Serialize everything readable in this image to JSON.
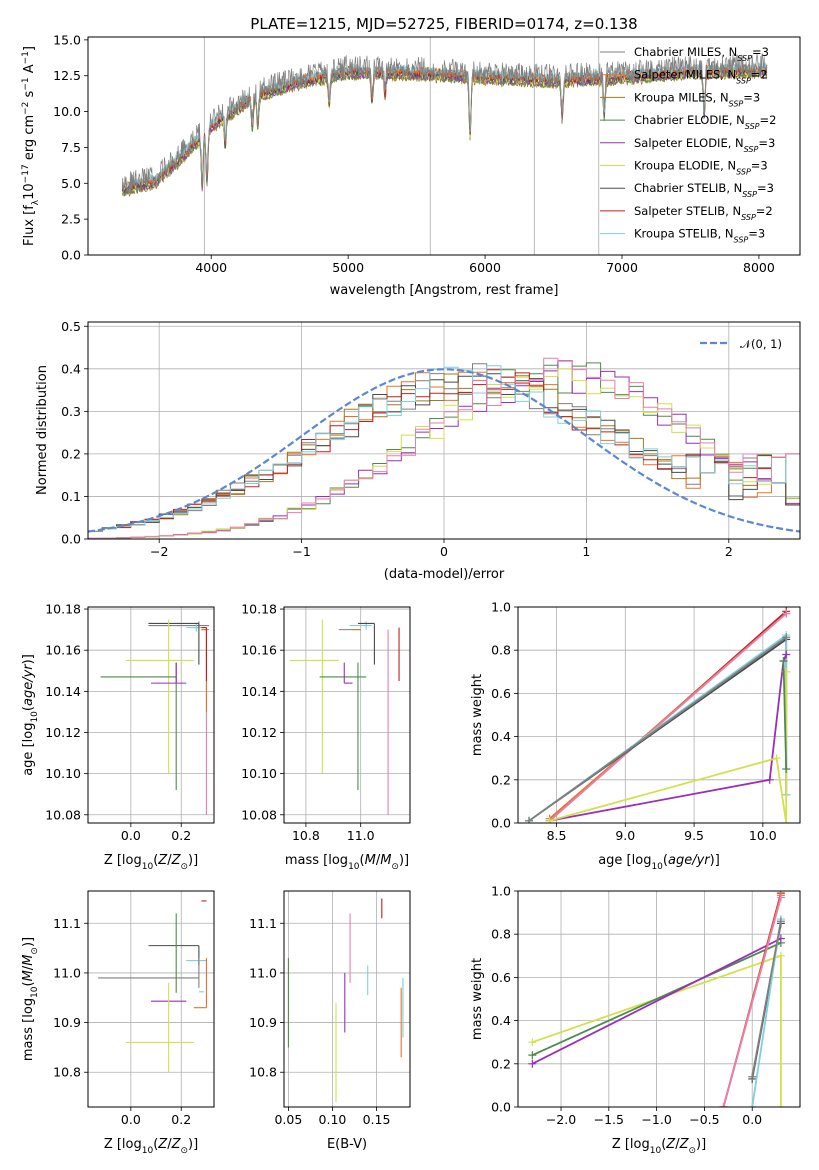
{
  "figure_title": "PLATE=1215, MJD=52725, FIBERID=0174, z=0.138",
  "colors": {
    "Chabrier MILES": "#7f7f7f",
    "Salpeter MILES": "#e8722c",
    "Kroupa MILES": "#a07a1a",
    "Chabrier ELODIE": "#4e8a4e",
    "Salpeter ELODIE": "#9a2fb8",
    "Kroupa ELODIE": "#d2e04a",
    "Chabrier STELIB": "#4a4a4a",
    "Salpeter STELIB": "#c0201c",
    "Kroupa STELIB": "#7fd0dc",
    "pink": "#e87fb0",
    "gaussian": "#5b88d4"
  },
  "chart_data": [
    {
      "id": "spectrum",
      "type": "line",
      "title": "PLATE=1215, MJD=52725, FIBERID=0174, z=0.138",
      "xlabel": "wavelength [Angstrom, rest frame]",
      "ylabel": "Flux [f_λ 10^-17 erg cm^-2 s^-1 A^-1]",
      "xlim": [
        3100,
        8300
      ],
      "ylim": [
        0,
        15.2
      ],
      "xticks": [
        "4000",
        "5000",
        "6000",
        "7000",
        "8000"
      ],
      "yticks": [
        "0.0",
        "2.5",
        "5.0",
        "7.5",
        "10.0",
        "12.5",
        "15.0"
      ],
      "legend": [
        {
          "label": "Chabrier MILES, N",
          "sub": "SSP",
          "tail": "=3"
        },
        {
          "label": "Salpeter MILES, N",
          "sub": "SSP",
          "tail": "=2"
        },
        {
          "label": "Kroupa MILES, N",
          "sub": "SSP",
          "tail": "=3"
        },
        {
          "label": "Chabrier ELODIE, N",
          "sub": "SSP",
          "tail": "=2"
        },
        {
          "label": "Salpeter ELODIE, N",
          "sub": "SSP",
          "tail": "=3"
        },
        {
          "label": "Kroupa ELODIE, N",
          "sub": "SSP",
          "tail": "=3"
        },
        {
          "label": "Chabrier STELIB, N",
          "sub": "SSP",
          "tail": "=3"
        },
        {
          "label": "Salpeter STELIB, N",
          "sub": "SSP",
          "tail": "=2"
        },
        {
          "label": "Kroupa STELIB, N",
          "sub": "SSP",
          "tail": "=3"
        }
      ],
      "continuum_knots": [
        [
          3350,
          4.6
        ],
        [
          3600,
          5.2
        ],
        [
          3800,
          7.0
        ],
        [
          4000,
          9.0
        ],
        [
          4300,
          11.0
        ],
        [
          4600,
          12.0
        ],
        [
          5000,
          12.8
        ],
        [
          5500,
          12.7
        ],
        [
          6000,
          12.4
        ],
        [
          6500,
          12.2
        ],
        [
          7000,
          12.4
        ],
        [
          7500,
          12.8
        ],
        [
          8000,
          12.9
        ],
        [
          8060,
          12.9
        ]
      ],
      "absorption_lines": [
        [
          3934,
          3.5
        ],
        [
          3969,
          3.5
        ],
        [
          4102,
          2.0
        ],
        [
          4300,
          2.0
        ],
        [
          4340,
          2.0
        ],
        [
          4861,
          2.0
        ],
        [
          5175,
          2.0
        ],
        [
          5270,
          1.5
        ],
        [
          5890,
          4.0
        ],
        [
          6563,
          2.5
        ],
        [
          6870,
          2.5
        ],
        [
          7600,
          3.0
        ]
      ],
      "vertical_lines": [
        3950,
        5600,
        6360,
        6830
      ],
      "x_start": 3350,
      "x_end": 8060
    },
    {
      "id": "residuals",
      "type": "step",
      "xlabel": "(data-model)/error",
      "ylabel": "Normed distribution",
      "xlim": [
        -2.5,
        2.5
      ],
      "ylim": [
        0,
        0.51
      ],
      "xticks": [
        -2,
        -1,
        0,
        1,
        2
      ],
      "ytick_labels": [
        "0.0",
        "0.1",
        "0.2",
        "0.3",
        "0.4",
        "0.5"
      ],
      "bin_width": 0.1,
      "legend": [
        "𝒩(0, 1)"
      ],
      "gaussian": {
        "mean": 0,
        "sigma": 1
      },
      "groups": [
        {
          "name": "left-peak",
          "center": 0.2,
          "width": 0.95,
          "peak": 0.36
        },
        {
          "name": "right-peak",
          "center": 0.8,
          "width": 0.85,
          "peak": 0.38
        }
      ]
    },
    {
      "id": "age-vs-Z",
      "type": "errorbar",
      "xlabel": "Z [log10(Z/Z⊙)]",
      "ylabel": "age [log10(age/yr)]",
      "xlim": [
        -0.17,
        0.33
      ],
      "ylim": [
        10.076,
        10.181
      ],
      "xticks": [
        "0.0",
        "0.2"
      ],
      "yticks": [
        "10.08",
        "10.10",
        "10.12",
        "10.14",
        "10.16",
        "10.18"
      ],
      "points": [
        {
          "c": "Chabrier MILES",
          "x": 0.27,
          "y": 10.172,
          "xerr": [
            0.2,
            0.04
          ],
          "yerr": [
            0.0,
            0.002
          ]
        },
        {
          "c": "Kroupa STELIB",
          "x": 0.26,
          "y": 10.171,
          "xerr": [
            0.04,
            0.04
          ],
          "yerr": [
            0.002,
            0.002
          ]
        },
        {
          "c": "Chabrier STELIB",
          "x": 0.27,
          "y": 10.173,
          "xerr": [
            0.2,
            0.0
          ],
          "yerr": [
            0.02,
            0.0
          ]
        },
        {
          "c": "Kroupa ELODIE",
          "x": 0.15,
          "y": 10.155,
          "xerr": [
            0.17,
            0.1
          ],
          "yerr": [
            0.055,
            0.02
          ]
        },
        {
          "c": "Chabrier ELODIE",
          "x": 0.18,
          "y": 10.147,
          "xerr": [
            0.3,
            0.0
          ],
          "yerr": [
            0.055,
            0.007
          ]
        },
        {
          "c": "Salpeter ELODIE",
          "x": 0.18,
          "y": 10.144,
          "xerr": [
            0.1,
            0.04
          ],
          "yerr": [
            0.0,
            0.01
          ]
        },
        {
          "c": "pink",
          "x": 0.3,
          "y": 10.17,
          "xerr": [
            0.02,
            0.01
          ],
          "yerr": [
            0.09,
            0.0
          ]
        },
        {
          "c": "Salpeter MILES",
          "x": 0.3,
          "y": 10.17,
          "xerr": [
            0.02,
            0.0
          ],
          "yerr": [
            0.04,
            0.0
          ]
        },
        {
          "c": "Salpeter STELIB",
          "x": 0.3,
          "y": 10.171,
          "xerr": [
            0.02,
            0.0
          ],
          "yerr": [
            0.026,
            0.0
          ]
        }
      ]
    },
    {
      "id": "age-vs-mass",
      "type": "errorbar",
      "xlabel": "mass [log10(M/M⊙)]",
      "ylabel": "",
      "xlim": [
        10.72,
        11.18
      ],
      "ylim": [
        10.076,
        10.181
      ],
      "xticks": [
        "10.8",
        "11.0"
      ],
      "yticks": [
        "10.08",
        "10.10",
        "10.12",
        "10.14",
        "10.16",
        "10.18"
      ],
      "points": [
        {
          "c": "Kroupa ELODIE",
          "x": 10.86,
          "y": 10.155,
          "xerr": [
            0.12,
            0.06
          ],
          "yerr": [
            0.055,
            0.02
          ]
        },
        {
          "c": "Chabrier ELODIE",
          "x": 10.99,
          "y": 10.147,
          "xerr": [
            0.14,
            0.03
          ],
          "yerr": [
            0.055,
            0.007
          ]
        },
        {
          "c": "Salpeter ELODIE",
          "x": 10.94,
          "y": 10.144,
          "xerr": [
            0.0,
            0.03
          ],
          "yerr": [
            0.0,
            0.01
          ]
        },
        {
          "c": "Kroupa STELIB",
          "x": 11.02,
          "y": 10.172,
          "xerr": [
            0.06,
            0.02
          ],
          "yerr": [
            0.002,
            0.002
          ]
        },
        {
          "c": "Chabrier STELIB",
          "x": 11.05,
          "y": 10.173,
          "xerr": [
            0.06,
            0.0
          ],
          "yerr": [
            0.02,
            0.0
          ]
        },
        {
          "c": "Chabrier MILES",
          "x": 11.0,
          "y": 10.17,
          "xerr": [
            0.08,
            0.0
          ],
          "yerr": [
            0.0,
            0.0
          ]
        },
        {
          "c": "Salpeter MILES",
          "x": 11.0,
          "y": 10.17,
          "xerr": [
            0.03,
            0.0
          ],
          "yerr": [
            0.0,
            0.0
          ]
        },
        {
          "c": "pink",
          "x": 11.1,
          "y": 10.17,
          "xerr": [
            0.0,
            0.0
          ],
          "yerr": [
            0.09,
            0.0
          ]
        },
        {
          "c": "Salpeter STELIB",
          "x": 11.14,
          "y": 10.171,
          "xerr": [
            0.0,
            0.0
          ],
          "yerr": [
            0.026,
            0.0
          ]
        }
      ]
    },
    {
      "id": "massweight-vs-age",
      "type": "line",
      "xlabel": "age  [log10(age/yr)]",
      "ylabel": "mass weight",
      "xlim": [
        8.22,
        10.27
      ],
      "ylim": [
        0,
        1.0
      ],
      "xticks": [
        "8.5",
        "9.0",
        "9.5",
        "10.0"
      ],
      "yticks": [
        "0.0",
        "0.2",
        "0.4",
        "0.6",
        "0.8",
        "1.0"
      ],
      "series": [
        {
          "c": "Salpeter STELIB",
          "xs": [
            8.45,
            10.17
          ],
          "ys": [
            0.01,
            0.98
          ]
        },
        {
          "c": "Salpeter MILES",
          "xs": [
            8.45,
            10.17
          ],
          "ys": [
            0.02,
            0.97
          ]
        },
        {
          "c": "pink",
          "xs": [
            8.45,
            10.17
          ],
          "ys": [
            0.01,
            0.97
          ]
        },
        {
          "c": "Chabrier STELIB",
          "xs": [
            8.3,
            10.17,
            10.17
          ],
          "ys": [
            0.01,
            0.85,
            0.13
          ]
        },
        {
          "c": "Kroupa STELIB",
          "xs": [
            8.3,
            10.17,
            10.17
          ],
          "ys": [
            0.01,
            0.87,
            0.13
          ]
        },
        {
          "c": "Chabrier MILES",
          "xs": [
            8.3,
            10.17
          ],
          "ys": [
            0.01,
            0.86
          ]
        },
        {
          "c": "Salpeter ELODIE",
          "xs": [
            8.45,
            10.05,
            10.15,
            10.17
          ],
          "ys": [
            0.01,
            0.2,
            0.75,
            0.78
          ]
        },
        {
          "c": "Kroupa ELODIE",
          "xs": [
            8.45,
            10.1,
            10.17,
            10.17
          ],
          "ys": [
            0.01,
            0.3,
            0.0,
            0.7
          ]
        },
        {
          "c": "Chabrier ELODIE",
          "xs": [
            10.15,
            10.17
          ],
          "ys": [
            0.75,
            0.25
          ]
        }
      ]
    },
    {
      "id": "mass-vs-Z",
      "type": "errorbar",
      "xlabel": "Z [log10(Z/Z⊙)]",
      "ylabel": "mass [log10(M/M⊙)]",
      "xlim": [
        -0.17,
        0.33
      ],
      "ylim": [
        10.73,
        11.165
      ],
      "xticks": [
        "0.0",
        "0.2"
      ],
      "yticks": [
        "10.8",
        "10.9",
        "11.0",
        "11.1"
      ],
      "points": [
        {
          "c": "Salpeter STELIB",
          "x": 0.3,
          "y": 11.145,
          "xerr": [
            0.02,
            0.0
          ],
          "yerr": [
            0.0,
            0.0
          ]
        },
        {
          "c": "Chabrier STELIB",
          "x": 0.27,
          "y": 11.055,
          "xerr": [
            0.2,
            0.0
          ],
          "yerr": [
            0.04,
            0.0
          ]
        },
        {
          "c": "Kroupa STELIB",
          "x": 0.26,
          "y": 11.025,
          "xerr": [
            0.04,
            0.04
          ],
          "yerr": [
            0.0,
            0.0
          ]
        },
        {
          "c": "Chabrier MILES",
          "x": 0.27,
          "y": 10.99,
          "xerr": [
            0.4,
            0.0
          ],
          "yerr": [
            0.02,
            0.04
          ]
        },
        {
          "c": "Chabrier ELODIE",
          "x": 0.18,
          "y": 10.99,
          "xerr": [
            0.0,
            0.0
          ],
          "yerr": [
            0.03,
            0.13
          ]
        },
        {
          "c": "Kroupa STELIB",
          "x": 0.27,
          "y": 10.962,
          "xerr": [
            0.0,
            0.02
          ],
          "yerr": [
            0.0,
            0.0
          ]
        },
        {
          "c": "Salpeter ELODIE",
          "x": 0.18,
          "y": 10.943,
          "xerr": [
            0.1,
            0.04
          ],
          "yerr": [
            0.0,
            0.0
          ]
        },
        {
          "c": "Salpeter MILES",
          "x": 0.3,
          "y": 10.93,
          "xerr": [
            0.05,
            0.0
          ],
          "yerr": [
            0.0,
            0.1
          ]
        },
        {
          "c": "Kroupa ELODIE",
          "x": 0.15,
          "y": 10.86,
          "xerr": [
            0.17,
            0.1
          ],
          "yerr": [
            0.06,
            0.12
          ]
        }
      ]
    },
    {
      "id": "mass-vs-EBV",
      "type": "errorbar",
      "xlabel": "E(B-V)",
      "ylabel": "",
      "xlim": [
        0.045,
        0.188
      ],
      "ylim": [
        10.73,
        11.165
      ],
      "xticks": [
        "0.05",
        "0.10",
        "0.15"
      ],
      "yticks": [
        "10.8",
        "10.9",
        "11.0",
        "11.1"
      ],
      "points": [
        {
          "c": "Salpeter STELIB",
          "x": 0.156,
          "y": 11.13,
          "xerr": [
            0,
            0
          ],
          "yerr": [
            0.02,
            0.02
          ]
        },
        {
          "c": "pink",
          "x": 0.12,
          "y": 11.05,
          "xerr": [
            0,
            0
          ],
          "yerr": [
            0.07,
            0.07
          ]
        },
        {
          "c": "Kroupa STELIB",
          "x": 0.14,
          "y": 10.985,
          "xerr": [
            0,
            0
          ],
          "yerr": [
            0.03,
            0.03
          ]
        },
        {
          "c": "Chabrier ELODIE",
          "x": 0.05,
          "y": 10.94,
          "xerr": [
            0,
            0
          ],
          "yerr": [
            0.09,
            0.09
          ]
        },
        {
          "c": "Salpeter ELODIE",
          "x": 0.114,
          "y": 10.94,
          "xerr": [
            0,
            0
          ],
          "yerr": [
            0.06,
            0.06
          ]
        },
        {
          "c": "Kroupa ELODIE",
          "x": 0.104,
          "y": 10.84,
          "xerr": [
            0,
            0
          ],
          "yerr": [
            0.1,
            0.1
          ]
        },
        {
          "c": "Salpeter MILES",
          "x": 0.178,
          "y": 10.9,
          "xerr": [
            0,
            0
          ],
          "yerr": [
            0.07,
            0.07
          ]
        },
        {
          "c": "Kroupa STELIB",
          "x": 0.18,
          "y": 10.93,
          "xerr": [
            0,
            0
          ],
          "yerr": [
            0.06,
            0.06
          ]
        }
      ]
    },
    {
      "id": "massweight-vs-Z",
      "type": "line",
      "xlabel": "Z [log10(Z/Z⊙)]",
      "ylabel": "mass weight",
      "xlim": [
        -2.45,
        0.5
      ],
      "ylim": [
        0,
        1.0
      ],
      "xticks": [
        "-2.0",
        "-1.5",
        "-1.0",
        "-0.5",
        "0.0"
      ],
      "yticks": [
        "0.0",
        "0.2",
        "0.4",
        "0.6",
        "0.8",
        "1.0"
      ],
      "series": [
        {
          "c": "Kroupa ELODIE",
          "xs": [
            -2.3,
            0.3,
            0.3
          ],
          "ys": [
            0.3,
            0.7,
            0.0
          ]
        },
        {
          "c": "Chabrier ELODIE",
          "xs": [
            -2.3,
            0.3
          ],
          "ys": [
            0.24,
            0.76
          ]
        },
        {
          "c": "Salpeter ELODIE",
          "xs": [
            -2.3,
            0.3
          ],
          "ys": [
            0.2,
            0.78
          ]
        },
        {
          "c": "Salpeter STELIB",
          "xs": [
            -0.3,
            0.3
          ],
          "ys": [
            0.0,
            0.99
          ]
        },
        {
          "c": "Salpeter MILES",
          "xs": [
            -0.3,
            0.3
          ],
          "ys": [
            0.0,
            0.98
          ]
        },
        {
          "c": "pink",
          "xs": [
            -0.3,
            0.3
          ],
          "ys": [
            0.0,
            0.97
          ]
        },
        {
          "c": "Chabrier STELIB",
          "xs": [
            0.0,
            0.3
          ],
          "ys": [
            0.13,
            0.85
          ]
        },
        {
          "c": "Kroupa STELIB",
          "xs": [
            0.0,
            0.3
          ],
          "ys": [
            0.0,
            0.87
          ]
        },
        {
          "c": "Chabrier MILES",
          "xs": [
            0.0,
            0.3
          ],
          "ys": [
            0.14,
            0.86
          ]
        }
      ]
    }
  ]
}
